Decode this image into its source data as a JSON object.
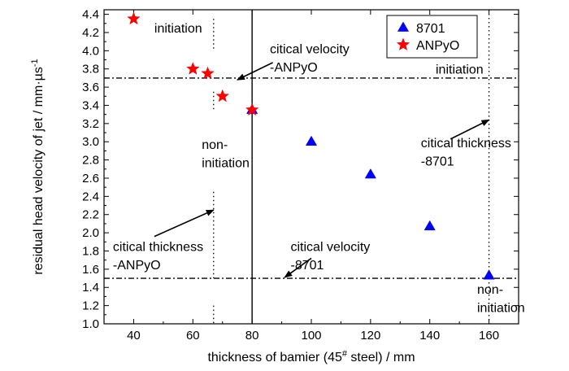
{
  "chart_data": {
    "type": "scatter",
    "xlabel": "thickness of bamier (45",
    "xlabel_sup": "#",
    "xlabel_tail": " steel) / mm",
    "ylabel": "residual head velocity of jet / mm·µs",
    "ylabel_sup": "-1",
    "xlim": [
      30,
      170
    ],
    "ylim": [
      1.0,
      4.45
    ],
    "xticks": [
      40,
      60,
      80,
      100,
      120,
      140,
      160
    ],
    "yticks": [
      1.0,
      1.2,
      1.4,
      1.6,
      1.8,
      2.0,
      2.2,
      2.4,
      2.6,
      2.8,
      3.0,
      3.2,
      3.4,
      3.6,
      3.8,
      4.0,
      4.2,
      4.4
    ],
    "legend_position": "top-right",
    "series": [
      {
        "name": "8701",
        "marker": "triangle",
        "color": "#0000ff",
        "points": [
          [
            80,
            3.35
          ],
          [
            100,
            3.0
          ],
          [
            120,
            2.64
          ],
          [
            140,
            2.07
          ],
          [
            160,
            1.53
          ]
        ]
      },
      {
        "name": "ANPyO",
        "marker": "star",
        "color": "#ff0000",
        "points": [
          [
            40,
            4.35
          ],
          [
            60,
            3.8
          ],
          [
            65,
            3.75
          ],
          [
            70,
            3.5
          ],
          [
            80,
            3.35
          ]
        ]
      }
    ],
    "reference_lines": [
      {
        "orientation": "horizontal",
        "value": 3.7,
        "style": "dashdot"
      },
      {
        "orientation": "horizontal",
        "value": 1.5,
        "style": "dashdot"
      },
      {
        "orientation": "vertical",
        "value": 80,
        "style": "solid"
      },
      {
        "orientation": "vertical",
        "value": 67,
        "style": "dotted",
        "segments": [
          [
            3.55,
            3.35
          ],
          [
            2.45,
            1.5
          ],
          [
            4.35,
            4.0
          ],
          [
            1.2,
            1.0
          ]
        ]
      },
      {
        "orientation": "vertical",
        "value": 160,
        "style": "dotted",
        "segments": [
          [
            4.45,
            1.0
          ]
        ]
      }
    ],
    "annotations": [
      {
        "text": "initiation",
        "x": 47,
        "y": 4.2
      },
      {
        "text": "citical velocity",
        "x": 86,
        "y": 3.97
      },
      {
        "text": "-ANPyO",
        "x": 86,
        "y": 3.77
      },
      {
        "text": "initiation",
        "x": 142,
        "y": 3.75
      },
      {
        "text": "non-",
        "x": 63,
        "y": 2.92
      },
      {
        "text": "initiation",
        "x": 63,
        "y": 2.72
      },
      {
        "text": "citical thickness",
        "x": 137,
        "y": 2.94
      },
      {
        "text": "-8701",
        "x": 137,
        "y": 2.74
      },
      {
        "text": "citical thickness",
        "x": 33,
        "y": 1.8
      },
      {
        "text": "-ANPyO",
        "x": 33,
        "y": 1.6
      },
      {
        "text": "citical velocity",
        "x": 93,
        "y": 1.8
      },
      {
        "text": "-8701",
        "x": 93,
        "y": 1.6
      },
      {
        "text": "non-",
        "x": 156,
        "y": 1.33
      },
      {
        "text": "initiation",
        "x": 156,
        "y": 1.13
      }
    ],
    "arrows": [
      {
        "from": [
          87,
          3.87
        ],
        "to": [
          75,
          3.68
        ]
      },
      {
        "from": [
          147,
          3.03
        ],
        "to": [
          160,
          3.24
        ]
      },
      {
        "from": [
          47,
          1.96
        ],
        "to": [
          67,
          2.25
        ]
      },
      {
        "from": [
          100,
          1.72
        ],
        "to": [
          91,
          1.51
        ]
      }
    ]
  }
}
